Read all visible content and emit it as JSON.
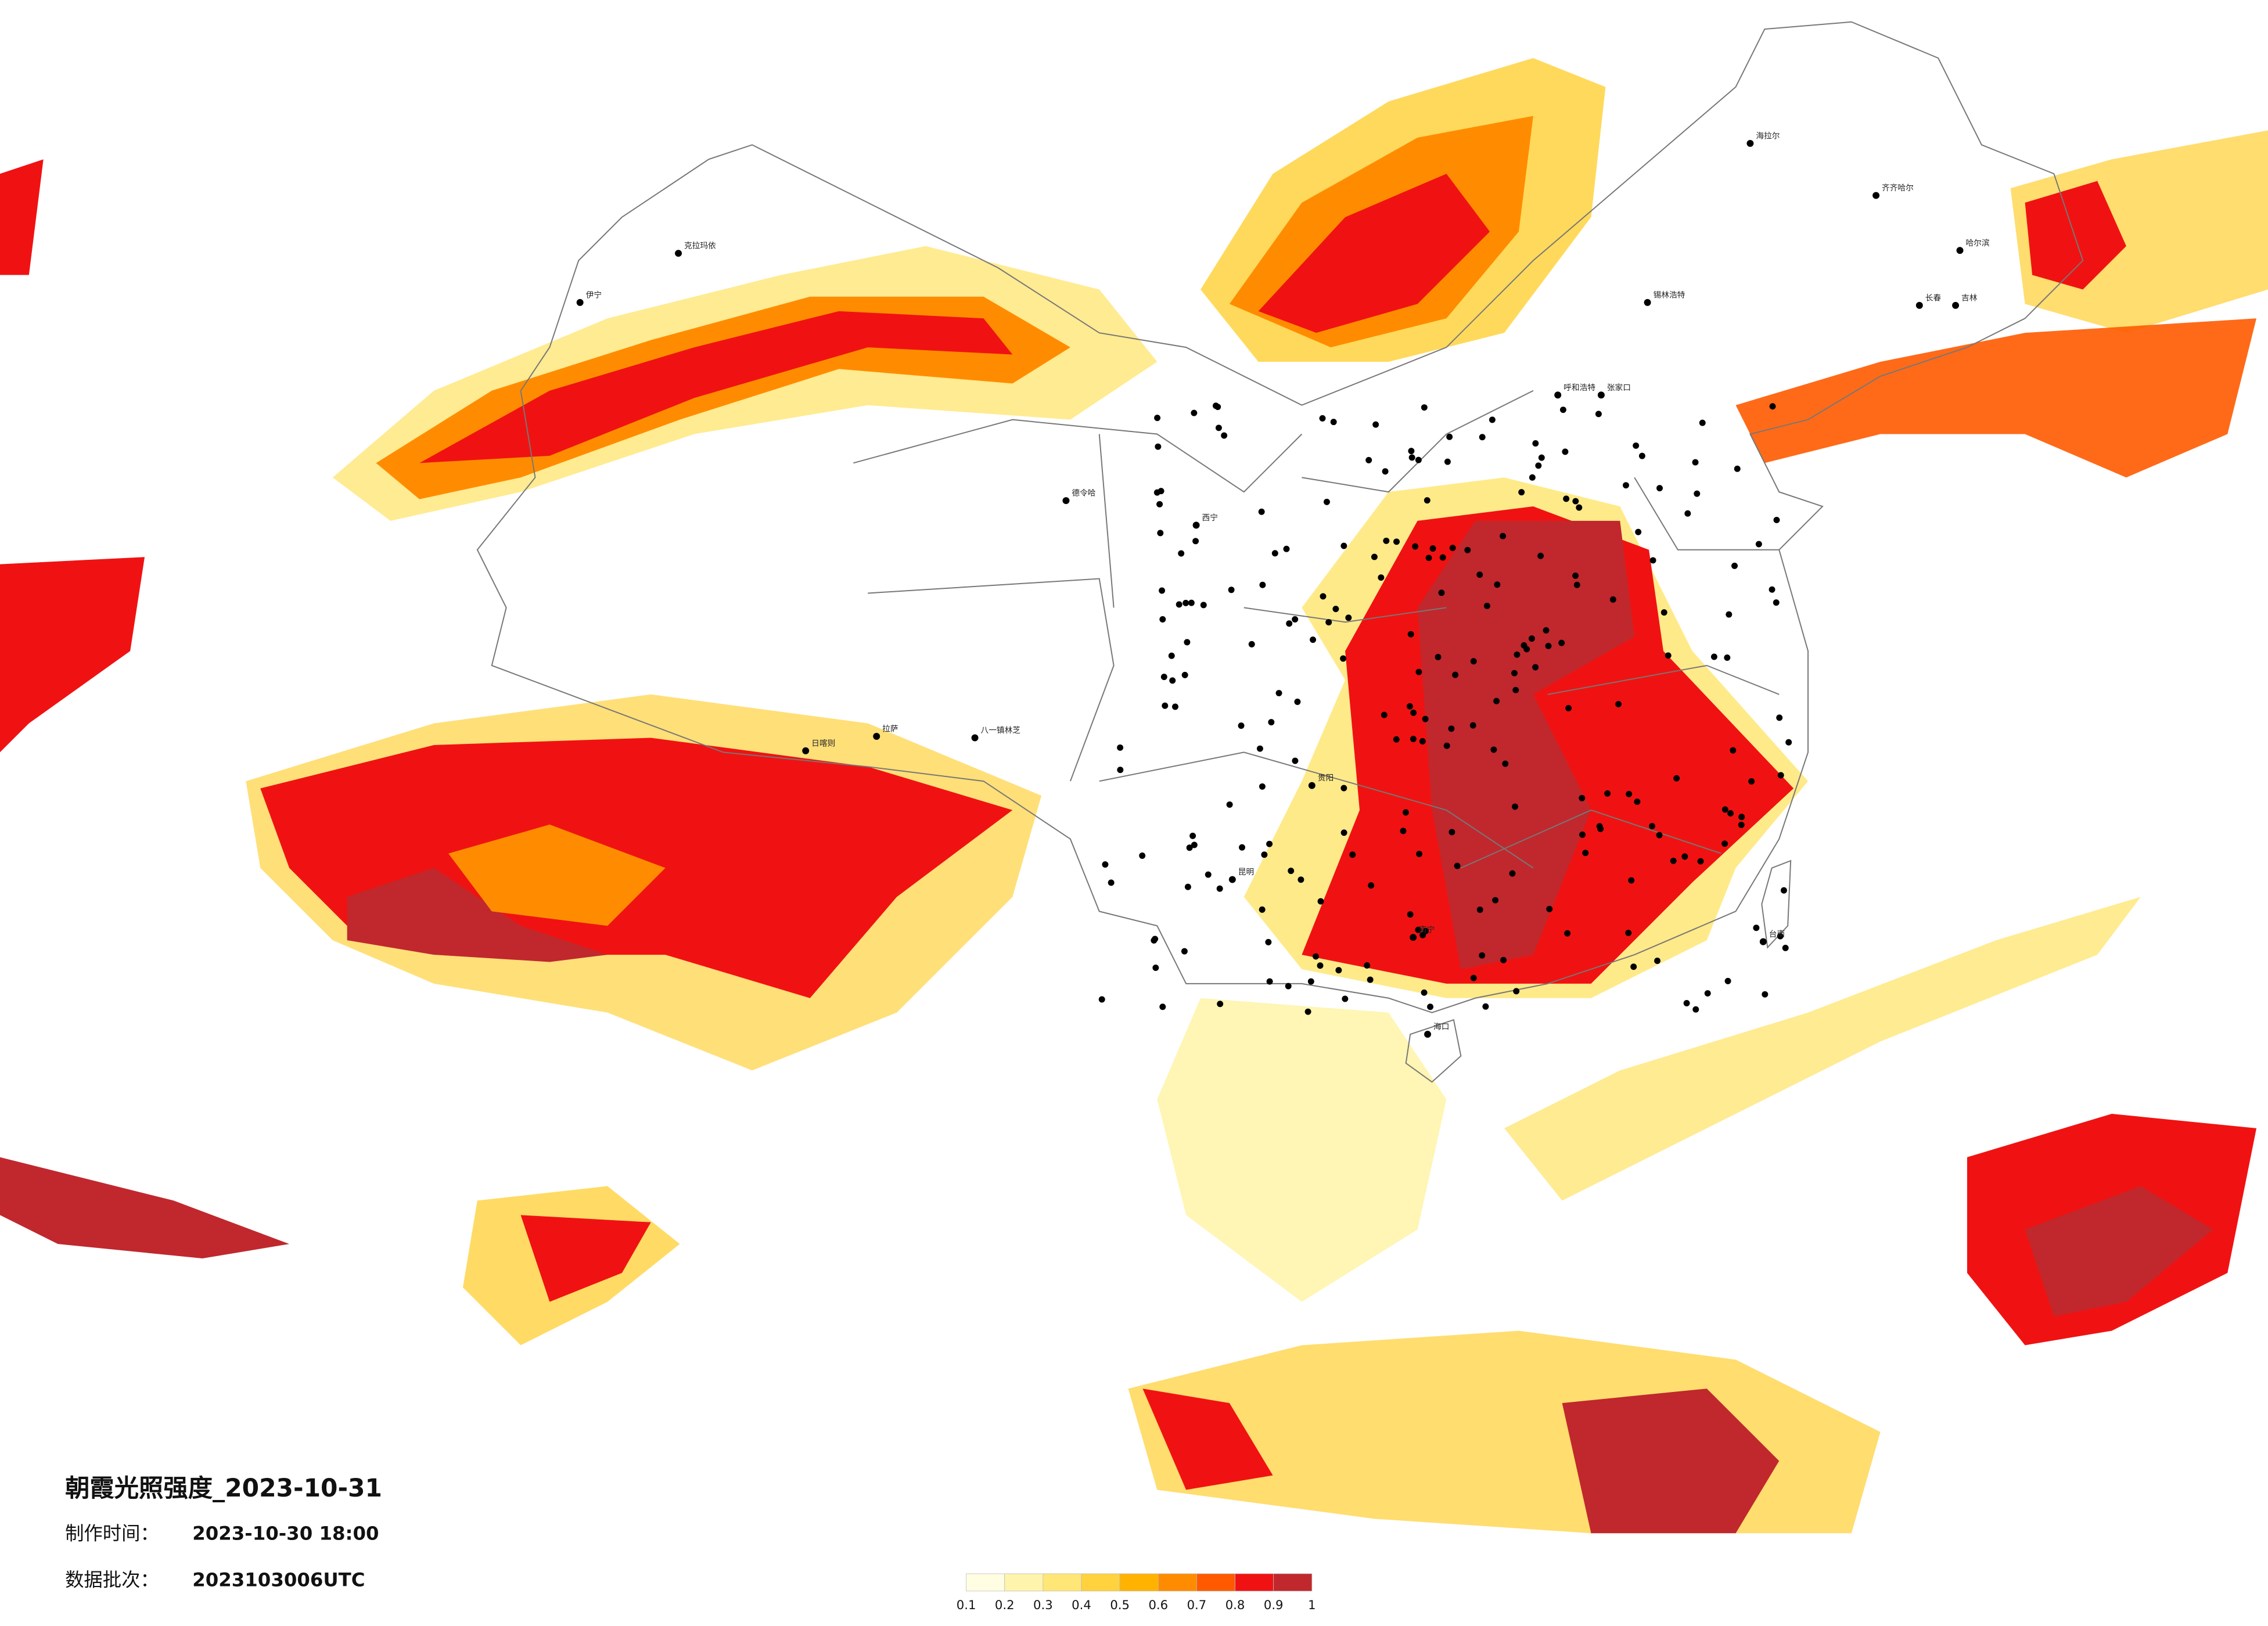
{
  "title": "朝霞光照强度_2023-10-31",
  "production_time": {
    "label": "制作时间：",
    "value": "2023-10-30 18:00"
  },
  "batch": {
    "label": "数据批次：",
    "value": "2023103006UTC"
  },
  "legend": {
    "colors": [
      "#fffde2",
      "#fff4ac",
      "#ffe676",
      "#ffd23e",
      "#ffb300",
      "#ff8c00",
      "#ff5a00",
      "#f01212",
      "#c0282d"
    ],
    "labels": [
      0.1,
      0.2,
      0.3,
      0.4,
      0.5,
      0.6,
      0.7,
      0.8,
      0.9,
      1
    ]
  },
  "cities": [
    "克拉玛依",
    "伊宁",
    "拉萨",
    "日喀则",
    "八一镇林芝",
    "德令哈",
    "海拉尔",
    "齐齐哈尔",
    "哈尔滨",
    "长春",
    "吉林",
    "锡林浩特",
    "呼和浩特",
    "张家口",
    "西宁",
    "昆明",
    "贵阳",
    "南宁",
    "台南",
    "海口"
  ]
}
